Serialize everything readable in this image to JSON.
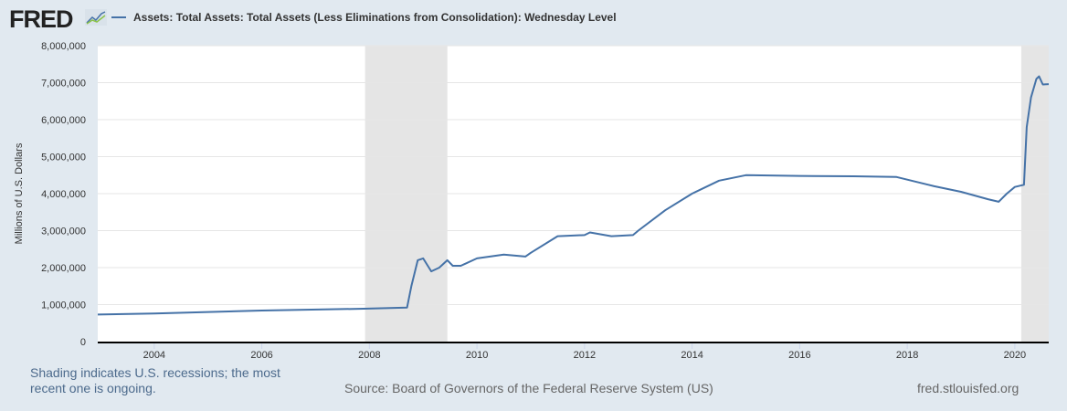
{
  "header": {
    "logo": "FRED",
    "legend_label": "Assets: Total Assets: Total Assets (Less Eliminations from Consolidation): Wednesday Level"
  },
  "footer": {
    "recession_note": "Shading indicates U.S. recessions; the most recent one is ongoing.",
    "source": "Source: Board of Governors of the Federal Reserve System (US)",
    "site": "fred.stlouisfed.org"
  },
  "colors": {
    "line": "#4572a7",
    "recession": "#e5e5e5",
    "grid": "#e6e6e6"
  },
  "chart_data": {
    "type": "line",
    "title": "Assets: Total Assets: Total Assets (Less Eliminations from Consolidation): Wednesday Level",
    "xlabel": "",
    "ylabel": "Millions of U.S. Dollars",
    "xlim": [
      2002.95,
      2020.63
    ],
    "ylim": [
      0,
      8000000
    ],
    "x_ticks": [
      2004,
      2006,
      2008,
      2010,
      2012,
      2014,
      2016,
      2018,
      2020
    ],
    "y_ticks": [
      0,
      1000000,
      2000000,
      3000000,
      4000000,
      5000000,
      6000000,
      7000000,
      8000000
    ],
    "y_tick_labels": [
      "0",
      "1,000,000",
      "2,000,000",
      "3,000,000",
      "4,000,000",
      "5,000,000",
      "6,000,000",
      "7,000,000",
      "8,000,000"
    ],
    "recessions": [
      [
        2007.92,
        2009.45
      ],
      [
        2020.12,
        2020.63
      ]
    ],
    "series": [
      {
        "name": "Assets: Total Assets: Total Assets (Less Eliminations from Consolidation): Wednesday Level",
        "x": [
          2002.95,
          2004,
          2006,
          2007.9,
          2008.7,
          2008.78,
          2008.9,
          2009.0,
          2009.15,
          2009.3,
          2009.45,
          2009.55,
          2009.7,
          2010.0,
          2010.5,
          2010.9,
          2011.0,
          2011.5,
          2012.0,
          2012.1,
          2012.5,
          2012.9,
          2013.0,
          2013.5,
          2014.0,
          2014.5,
          2015.0,
          2016.0,
          2017.0,
          2017.8,
          2018.5,
          2019.0,
          2019.5,
          2019.7,
          2019.85,
          2020.0,
          2020.17,
          2020.22,
          2020.3,
          2020.4,
          2020.45,
          2020.52,
          2020.63
        ],
        "y": [
          730000,
          760000,
          840000,
          890000,
          920000,
          1500000,
          2200000,
          2250000,
          1900000,
          2000000,
          2200000,
          2050000,
          2050000,
          2250000,
          2350000,
          2300000,
          2400000,
          2850000,
          2880000,
          2950000,
          2850000,
          2880000,
          3000000,
          3550000,
          4000000,
          4350000,
          4500000,
          4480000,
          4470000,
          4450000,
          4200000,
          4050000,
          3850000,
          3780000,
          4000000,
          4180000,
          4240000,
          5800000,
          6600000,
          7100000,
          7170000,
          6950000,
          6960000
        ]
      }
    ]
  }
}
